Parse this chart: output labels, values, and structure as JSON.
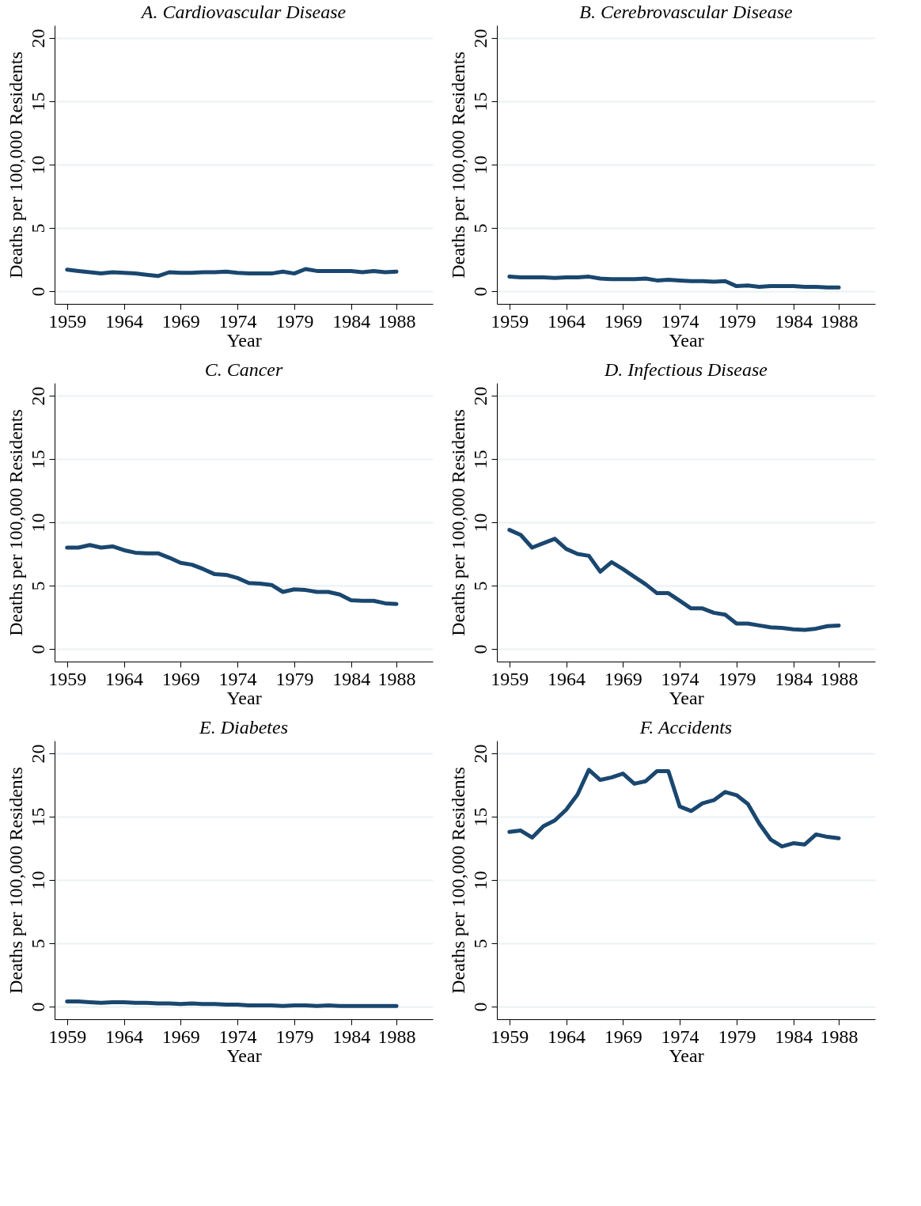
{
  "chart_data": [
    {
      "type": "line",
      "title": "A. Cardiovascular Disease",
      "xlabel": "Year",
      "ylabel": "Deaths per 100,000 Residents",
      "x": [
        1959,
        1960,
        1961,
        1962,
        1963,
        1964,
        1965,
        1966,
        1967,
        1968,
        1969,
        1970,
        1971,
        1972,
        1973,
        1974,
        1975,
        1976,
        1977,
        1978,
        1979,
        1980,
        1981,
        1982,
        1983,
        1984,
        1985,
        1986,
        1987,
        1988
      ],
      "color": "#1a476f",
      "values": [
        1.7,
        1.6,
        1.5,
        1.4,
        1.5,
        1.45,
        1.4,
        1.3,
        1.2,
        1.5,
        1.45,
        1.45,
        1.5,
        1.5,
        1.55,
        1.45,
        1.4,
        1.4,
        1.4,
        1.55,
        1.4,
        1.75,
        1.6,
        1.6,
        1.6,
        1.6,
        1.5,
        1.6,
        1.5,
        1.55
      ],
      "xlim": [
        1957.9,
        1991.2
      ],
      "ylim": [
        -1,
        21
      ],
      "xticks": [
        1959,
        1964,
        1969,
        1974,
        1979,
        1984,
        1988
      ],
      "yticks": [
        0,
        5,
        10,
        15,
        20
      ],
      "grid": "y",
      "line_style": "solid"
    },
    {
      "type": "line",
      "title": "B. Cerebrovascular Disease",
      "xlabel": "Year",
      "ylabel": "Deaths per 100,000 Residents",
      "x": [
        1959,
        1960,
        1961,
        1962,
        1963,
        1964,
        1965,
        1966,
        1967,
        1968,
        1969,
        1970,
        1971,
        1972,
        1973,
        1974,
        1975,
        1976,
        1977,
        1978,
        1979,
        1980,
        1981,
        1982,
        1983,
        1984,
        1985,
        1986,
        1987,
        1988
      ],
      "color": "#1a476f",
      "values": [
        1.15,
        1.1,
        1.1,
        1.1,
        1.05,
        1.1,
        1.1,
        1.15,
        1.0,
        0.95,
        0.95,
        0.95,
        1.0,
        0.85,
        0.9,
        0.85,
        0.8,
        0.8,
        0.75,
        0.8,
        0.4,
        0.45,
        0.35,
        0.4,
        0.4,
        0.4,
        0.35,
        0.35,
        0.3,
        0.3
      ],
      "xlim": [
        1957.9,
        1991.2
      ],
      "ylim": [
        -1,
        21
      ],
      "xticks": [
        1959,
        1964,
        1969,
        1974,
        1979,
        1984,
        1988
      ],
      "yticks": [
        0,
        5,
        10,
        15,
        20
      ],
      "grid": "y",
      "line_style": "solid"
    },
    {
      "type": "line",
      "title": "C. Cancer",
      "xlabel": "Year",
      "ylabel": "Deaths per 100,000 Residents",
      "x": [
        1959,
        1960,
        1961,
        1962,
        1963,
        1964,
        1965,
        1966,
        1967,
        1968,
        1969,
        1970,
        1971,
        1972,
        1973,
        1974,
        1975,
        1976,
        1977,
        1978,
        1979,
        1980,
        1981,
        1982,
        1983,
        1984,
        1985,
        1986,
        1987,
        1988
      ],
      "color": "#1a476f",
      "values": [
        8.0,
        8.0,
        8.2,
        8.0,
        8.1,
        7.8,
        7.6,
        7.55,
        7.55,
        7.2,
        6.8,
        6.65,
        6.3,
        5.9,
        5.85,
        5.6,
        5.2,
        5.15,
        5.05,
        4.5,
        4.7,
        4.65,
        4.5,
        4.5,
        4.3,
        3.85,
        3.8,
        3.8,
        3.6,
        3.55
      ],
      "xlim": [
        1957.9,
        1991.2
      ],
      "ylim": [
        -1,
        21
      ],
      "xticks": [
        1959,
        1964,
        1969,
        1974,
        1979,
        1984,
        1988
      ],
      "yticks": [
        0,
        5,
        10,
        15,
        20
      ],
      "grid": "y",
      "line_style": "solid"
    },
    {
      "type": "line",
      "title": "D. Infectious Disease",
      "xlabel": "Year",
      "ylabel": "Deaths per 100,000 Residents",
      "x": [
        1959,
        1960,
        1961,
        1962,
        1963,
        1964,
        1965,
        1966,
        1967,
        1968,
        1969,
        1970,
        1971,
        1972,
        1973,
        1974,
        1975,
        1976,
        1977,
        1978,
        1979,
        1980,
        1981,
        1982,
        1983,
        1984,
        1985,
        1986,
        1987,
        1988
      ],
      "color": "#1a476f",
      "values": [
        9.4,
        9.0,
        8.0,
        8.35,
        8.7,
        7.9,
        7.5,
        7.35,
        6.1,
        6.85,
        6.3,
        5.7,
        5.1,
        4.4,
        4.4,
        3.8,
        3.2,
        3.2,
        2.85,
        2.7,
        2.0,
        2.0,
        1.85,
        1.7,
        1.65,
        1.55,
        1.5,
        1.6,
        1.8,
        1.85
      ],
      "xlim": [
        1957.9,
        1991.2
      ],
      "ylim": [
        -1,
        21
      ],
      "xticks": [
        1959,
        1964,
        1969,
        1974,
        1979,
        1984,
        1988
      ],
      "yticks": [
        0,
        5,
        10,
        15,
        20
      ],
      "grid": "y",
      "line_style": "solid"
    },
    {
      "type": "line",
      "title": "E. Diabetes",
      "xlabel": "Year",
      "ylabel": "Deaths per 100,000 Residents",
      "x": [
        1959,
        1960,
        1961,
        1962,
        1963,
        1964,
        1965,
        1966,
        1967,
        1968,
        1969,
        1970,
        1971,
        1972,
        1973,
        1974,
        1975,
        1976,
        1977,
        1978,
        1979,
        1980,
        1981,
        1982,
        1983,
        1984,
        1985,
        1986,
        1987,
        1988
      ],
      "color": "#1a476f",
      "values": [
        0.4,
        0.4,
        0.35,
        0.3,
        0.35,
        0.35,
        0.3,
        0.3,
        0.25,
        0.25,
        0.2,
        0.25,
        0.2,
        0.2,
        0.15,
        0.15,
        0.1,
        0.1,
        0.1,
        0.05,
        0.1,
        0.1,
        0.05,
        0.1,
        0.05,
        0.05,
        0.05,
        0.05,
        0.05,
        0.05
      ],
      "xlim": [
        1957.9,
        1991.2
      ],
      "ylim": [
        -1,
        21
      ],
      "xticks": [
        1959,
        1964,
        1969,
        1974,
        1979,
        1984,
        1988
      ],
      "yticks": [
        0,
        5,
        10,
        15,
        20
      ],
      "grid": "y",
      "line_style": "solid"
    },
    {
      "type": "line",
      "title": "F. Accidents",
      "xlabel": "Year",
      "ylabel": "Deaths per 100,000 Residents",
      "x": [
        1959,
        1960,
        1961,
        1962,
        1963,
        1964,
        1965,
        1966,
        1967,
        1968,
        1969,
        1970,
        1971,
        1972,
        1973,
        1974,
        1975,
        1976,
        1977,
        1978,
        1979,
        1980,
        1981,
        1982,
        1983,
        1984,
        1985,
        1986,
        1987,
        1988
      ],
      "color": "#1a476f",
      "values": [
        13.8,
        13.9,
        13.35,
        14.25,
        14.7,
        15.55,
        16.75,
        18.7,
        17.9,
        18.1,
        18.4,
        17.6,
        17.8,
        18.6,
        18.6,
        15.8,
        15.45,
        16.05,
        16.3,
        16.95,
        16.7,
        16.0,
        14.45,
        13.2,
        12.65,
        12.9,
        12.8,
        13.6,
        13.4,
        13.3
      ],
      "xlim": [
        1957.9,
        1991.2
      ],
      "ylim": [
        -1,
        21
      ],
      "xticks": [
        1959,
        1964,
        1969,
        1974,
        1979,
        1984,
        1988
      ],
      "yticks": [
        0,
        5,
        10,
        15,
        20
      ],
      "grid": "y",
      "line_style": "solid"
    }
  ]
}
